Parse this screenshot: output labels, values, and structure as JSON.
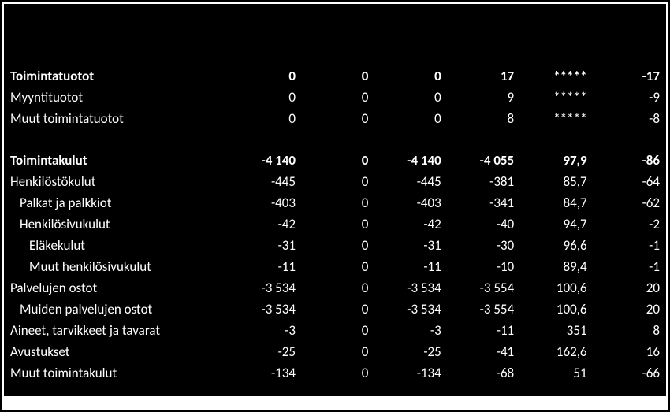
{
  "colors": {
    "page_bg": "#ffffff",
    "panel_bg": "#000000",
    "text": "#ffffff",
    "border": "#000000"
  },
  "typography": {
    "font_family": "Calibri, Arial, sans-serif",
    "font_size_pt": 13,
    "bold_weight": 700
  },
  "table": {
    "type": "table",
    "columns": [
      {
        "key": "label",
        "align": "left"
      },
      {
        "key": "c1",
        "align": "right"
      },
      {
        "key": "c2",
        "align": "right"
      },
      {
        "key": "c3",
        "align": "right"
      },
      {
        "key": "c4",
        "align": "right"
      },
      {
        "key": "c5",
        "align": "right"
      },
      {
        "key": "c6",
        "align": "right"
      }
    ],
    "rows": [
      {
        "type": "spacer"
      },
      {
        "type": "data",
        "bold": true,
        "indent": 0,
        "label": "Toimintatuotot",
        "c1": "0",
        "c2": "0",
        "c3": "0",
        "c4": "17",
        "c5": "*****",
        "c6": "-17"
      },
      {
        "type": "data",
        "bold": false,
        "indent": 0,
        "label": "Myyntituotot",
        "c1": "0",
        "c2": "0",
        "c3": "0",
        "c4": "9",
        "c5": "*****",
        "c6": "-9"
      },
      {
        "type": "data",
        "bold": false,
        "indent": 0,
        "label": "Muut toimintatuotot",
        "c1": "0",
        "c2": "0",
        "c3": "0",
        "c4": "8",
        "c5": "*****",
        "c6": "-8"
      },
      {
        "type": "gap"
      },
      {
        "type": "data",
        "bold": true,
        "indent": 0,
        "label": "Toimintakulut",
        "c1": "-4 140",
        "c2": "0",
        "c3": "-4 140",
        "c4": "-4 055",
        "c5": "97,9",
        "c6": "-86"
      },
      {
        "type": "data",
        "bold": false,
        "indent": 0,
        "label": "Henkilöstökulut",
        "c1": "-445",
        "c2": "0",
        "c3": "-445",
        "c4": "-381",
        "c5": "85,7",
        "c6": "-64"
      },
      {
        "type": "data",
        "bold": false,
        "indent": 1,
        "label": "Palkat ja palkkiot",
        "c1": "-403",
        "c2": "0",
        "c3": "-403",
        "c4": "-341",
        "c5": "84,7",
        "c6": "-62"
      },
      {
        "type": "data",
        "bold": false,
        "indent": 1,
        "label": "Henkilösivukulut",
        "c1": "-42",
        "c2": "0",
        "c3": "-42",
        "c4": "-40",
        "c5": "94,7",
        "c6": "-2"
      },
      {
        "type": "data",
        "bold": false,
        "indent": 2,
        "label": "Eläkekulut",
        "c1": "-31",
        "c2": "0",
        "c3": "-31",
        "c4": "-30",
        "c5": "96,6",
        "c6": "-1"
      },
      {
        "type": "data",
        "bold": false,
        "indent": 2,
        "label": "Muut henkilösivukulut",
        "c1": "-11",
        "c2": "0",
        "c3": "-11",
        "c4": "-10",
        "c5": "89,4",
        "c6": "-1"
      },
      {
        "type": "data",
        "bold": false,
        "indent": 0,
        "label": "Palvelujen ostot",
        "c1": "-3 534",
        "c2": "0",
        "c3": "-3 534",
        "c4": "-3 554",
        "c5": "100,6",
        "c6": "20"
      },
      {
        "type": "data",
        "bold": false,
        "indent": 1,
        "label": "Muiden palvelujen ostot",
        "c1": "-3 534",
        "c2": "0",
        "c3": "-3 534",
        "c4": "-3 554",
        "c5": "100,6",
        "c6": "20"
      },
      {
        "type": "data",
        "bold": false,
        "indent": 0,
        "label": "Aineet, tarvikkeet ja tavarat",
        "c1": "-3",
        "c2": "0",
        "c3": "-3",
        "c4": "-11",
        "c5": "351",
        "c6": "8"
      },
      {
        "type": "data",
        "bold": false,
        "indent": 0,
        "label": "Avustukset",
        "c1": "-25",
        "c2": "0",
        "c3": "-25",
        "c4": "-41",
        "c5": "162,6",
        "c6": "16"
      },
      {
        "type": "data",
        "bold": false,
        "indent": 0,
        "label": "Muut toimintakulut",
        "c1": "-134",
        "c2": "0",
        "c3": "-134",
        "c4": "-68",
        "c5": "51",
        "c6": "-66"
      }
    ]
  }
}
